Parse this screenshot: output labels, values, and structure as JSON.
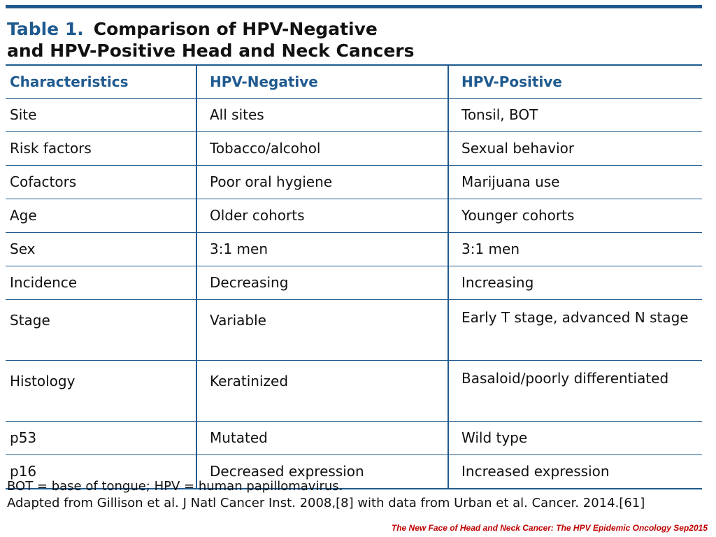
{
  "title": {
    "number": "Table 1.",
    "line1": "Comparison of HPV-Negative",
    "line2": "and HPV-Positive Head and Neck Cancers"
  },
  "table": {
    "headers": [
      "Characteristics",
      "HPV-Negative",
      "HPV-Positive"
    ],
    "rows": [
      [
        "Site",
        "All sites",
        "Tonsil, BOT"
      ],
      [
        "Risk factors",
        "Tobacco/alcohol",
        "Sexual behavior"
      ],
      [
        "Cofactors",
        "Poor oral hygiene",
        "Marijuana use"
      ],
      [
        "Age",
        "Older cohorts",
        "Younger cohorts"
      ],
      [
        "Sex",
        "3:1 men",
        "3:1 men"
      ],
      [
        "Incidence",
        "Decreasing",
        "Increasing"
      ],
      [
        "Stage",
        "Variable",
        "Early T stage, advanced N stage"
      ],
      [
        "Histology",
        "Keratinized",
        "Basaloid/poorly differentiated"
      ],
      [
        "p53",
        "Mutated",
        "Wild type"
      ],
      [
        "p16",
        "Decreased expression",
        "Increased expression"
      ]
    ]
  },
  "footnotes": {
    "line1": "BOT = base of tongue; HPV = human papillomavirus.",
    "line2": "Adapted from Gillison et al. J Natl Cancer Inst. 2008,[8] with data from Urban et al. Cancer. 2014.[61]"
  },
  "source": "The New Face of Head and Neck Cancer: The HPV Epidemic Oncology Sep2015",
  "colors": {
    "accent": "#1f5a8f",
    "source_text": "#c00000"
  }
}
